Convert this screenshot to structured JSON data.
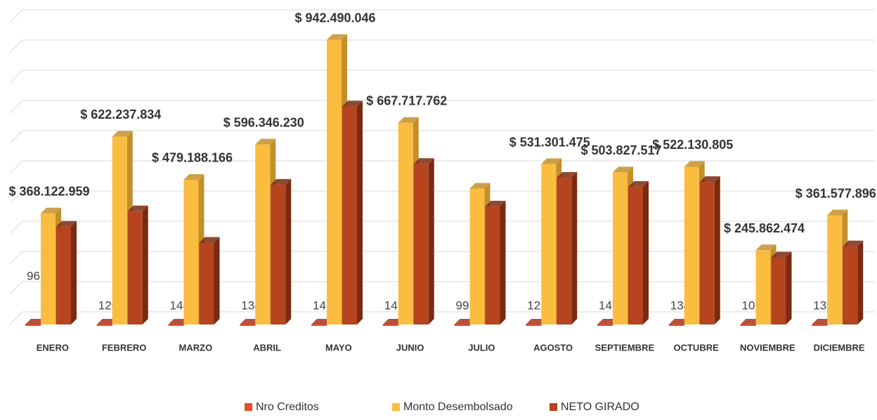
{
  "chart_data": {
    "type": "bar3d",
    "categories": [
      "ENERO",
      "FEBRERO",
      "MARZO",
      "ABRIL",
      "MAYO",
      "JUNIO",
      "JULIO",
      "AGOSTO",
      "SEPTIEMBRE",
      "OCTUBRE",
      "NOVIEMBRE",
      "DICIEMBRE"
    ],
    "series": [
      {
        "name": "Nro Creditos",
        "color": "#e84c22",
        "side": "#a8321a",
        "values": [
          96,
          126,
          148,
          134,
          141,
          141,
          99,
          121,
          146,
          134,
          102,
          135
        ]
      },
      {
        "name": "Monto Desembolsado",
        "color": "#fbbd40",
        "side": "#c48f2a",
        "values": [
          368122959,
          622237834,
          479188166,
          596346230,
          942490046,
          667717762,
          450000000,
          531301475,
          503827517,
          522130805,
          245862474,
          361577896
        ],
        "value_labels": [
          "$ 368.122.959",
          "$ 622.237.834",
          "$ 479.188.166",
          "$ 596.346.230",
          "$ 942.490.046",
          "$ 667.717.762",
          null,
          "$ 531.301.475",
          "$ 503.827.517",
          "$ 522.130.805",
          "$ 245.862.474",
          "$ 361.577.896"
        ]
      },
      {
        "name": "NETO GIRADO",
        "color": "#b5441f",
        "side": "#7a2a10",
        "values": [
          324000000,
          375000000,
          271000000,
          463000000,
          722000000,
          532000000,
          391000000,
          486000000,
          456000000,
          472000000,
          222000000,
          259000000
        ]
      }
    ],
    "ylim": [
      0,
      1000000000
    ],
    "yticks": [
      0,
      100000000,
      200000000,
      300000000,
      400000000,
      500000000,
      600000000,
      700000000,
      800000000,
      900000000,
      1000000000
    ],
    "grid": true,
    "legend": "bottom"
  }
}
